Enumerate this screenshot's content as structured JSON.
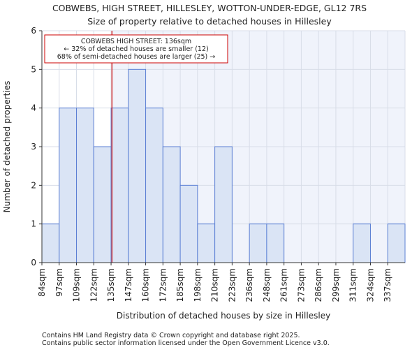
{
  "chart_data": {
    "type": "bar",
    "title_line1": "COBWEBS, HIGH STREET, HILLESLEY, WOTTON-UNDER-EDGE, GL12 7RS",
    "title_line2": "Size of property relative to detached houses in Hillesley",
    "xlabel": "Distribution of detached houses by size in Hillesley",
    "ylabel": "Number of detached properties",
    "categories": [
      "84sqm",
      "97sqm",
      "109sqm",
      "122sqm",
      "135sqm",
      "147sqm",
      "160sqm",
      "172sqm",
      "185sqm",
      "198sqm",
      "210sqm",
      "223sqm",
      "236sqm",
      "248sqm",
      "261sqm",
      "273sqm",
      "286sqm",
      "299sqm",
      "311sqm",
      "324sqm",
      "337sqm"
    ],
    "values": [
      1,
      4,
      4,
      3,
      4,
      5,
      4,
      3,
      2,
      1,
      3,
      0,
      1,
      1,
      0,
      0,
      0,
      0,
      1,
      0,
      1
    ],
    "ylim": [
      0,
      6
    ],
    "yticks": [
      0,
      1,
      2,
      3,
      4,
      5,
      6
    ],
    "property_marker": {
      "value_index": 4.05,
      "color": "#cc0000"
    },
    "annotation": {
      "line1": "COBWEBS HIGH STREET: 136sqm",
      "line2": "← 32% of detached houses are smaller (12)",
      "line3": "68% of semi-detached houses are larger (25) →",
      "border_color": "#cc0000"
    },
    "colors": {
      "bar_fill": "#dae4f5",
      "bar_stroke": "#5b7fd4",
      "shade_fill": "#f0f3fb",
      "grid": "#d8dde8"
    }
  },
  "footer": {
    "line1": "Contains HM Land Registry data © Crown copyright and database right 2025.",
    "line2": "Contains public sector information licensed under the Open Government Licence v3.0."
  }
}
